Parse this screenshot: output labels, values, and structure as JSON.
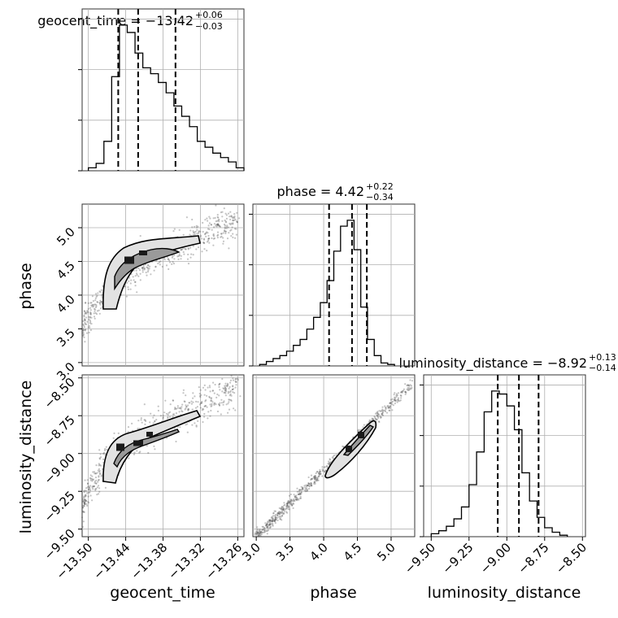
{
  "chart_data": {
    "type": "corner",
    "grid": true,
    "parameters": [
      {
        "name": "geocent_time",
        "range": [
          -13.51,
          -13.25
        ],
        "ticks": [
          -13.5,
          -13.44,
          -13.38,
          -13.32,
          -13.26
        ],
        "tick_labels": [
          "−13.50",
          "−13.44",
          "−13.38",
          "−13.32",
          "−13.26"
        ],
        "median": -13.42,
        "plus": 0.06,
        "minus": 0.03,
        "title": "geocent_time = −13.42",
        "title_plus": "+0.06",
        "title_minus": "−0.03",
        "quantiles": [
          -13.452,
          -13.42,
          -13.36
        ],
        "hist": {
          "edges_start": -13.5,
          "bin_width": 0.0125,
          "heights": [
            0.02,
            0.05,
            0.2,
            0.64,
            0.99,
            0.94,
            0.8,
            0.7,
            0.66,
            0.6,
            0.53,
            0.44,
            0.37,
            0.3,
            0.2,
            0.16,
            0.12,
            0.09,
            0.06,
            0.02
          ]
        }
      },
      {
        "name": "phase",
        "range": [
          2.95,
          5.35
        ],
        "ticks": [
          3.0,
          3.5,
          4.0,
          4.5,
          5.0
        ],
        "tick_labels": [
          "3.0",
          "3.5",
          "4.0",
          "4.5",
          "5.0"
        ],
        "median": 4.42,
        "plus": 0.22,
        "minus": 0.34,
        "title": "phase = 4.42",
        "title_plus": "+0.22",
        "title_minus": "−0.34",
        "quantiles": [
          4.08,
          4.42,
          4.64
        ],
        "hist": {
          "edges_start": 3.05,
          "bin_width": 0.1,
          "heights": [
            0.01,
            0.03,
            0.05,
            0.07,
            0.1,
            0.14,
            0.18,
            0.25,
            0.33,
            0.43,
            0.58,
            0.78,
            0.95,
            0.99,
            0.79,
            0.4,
            0.18,
            0.07,
            0.02,
            0.01
          ]
        }
      },
      {
        "name": "luminosity_distance",
        "range": [
          -9.55,
          -8.48
        ],
        "ticks": [
          -9.5,
          -9.25,
          -9.0,
          -8.75,
          -8.5
        ],
        "tick_labels": [
          "−9.50",
          "−9.25",
          "−9.00",
          "−8.75",
          "−8.50"
        ],
        "median": -8.92,
        "plus": 0.13,
        "minus": 0.14,
        "title": "luminosity_distance = −8.92",
        "title_plus": "+0.13",
        "title_minus": "−0.14",
        "quantiles": [
          -9.06,
          -8.92,
          -8.79
        ],
        "hist": {
          "edges_start": -9.5,
          "bin_width": 0.05,
          "heights": [
            0.02,
            0.04,
            0.07,
            0.12,
            0.2,
            0.35,
            0.57,
            0.84,
            0.98,
            0.96,
            0.88,
            0.72,
            0.43,
            0.24,
            0.13,
            0.06,
            0.03,
            0.01
          ]
        }
      }
    ],
    "correlations": [
      {
        "x": "geocent_time",
        "y": "phase"
      },
      {
        "x": "geocent_time",
        "y": "luminosity_distance"
      },
      {
        "x": "phase",
        "y": "luminosity_distance"
      }
    ],
    "colors": {
      "line": "#000000",
      "grid": "#b0b0b0",
      "samples": "#555555"
    }
  }
}
